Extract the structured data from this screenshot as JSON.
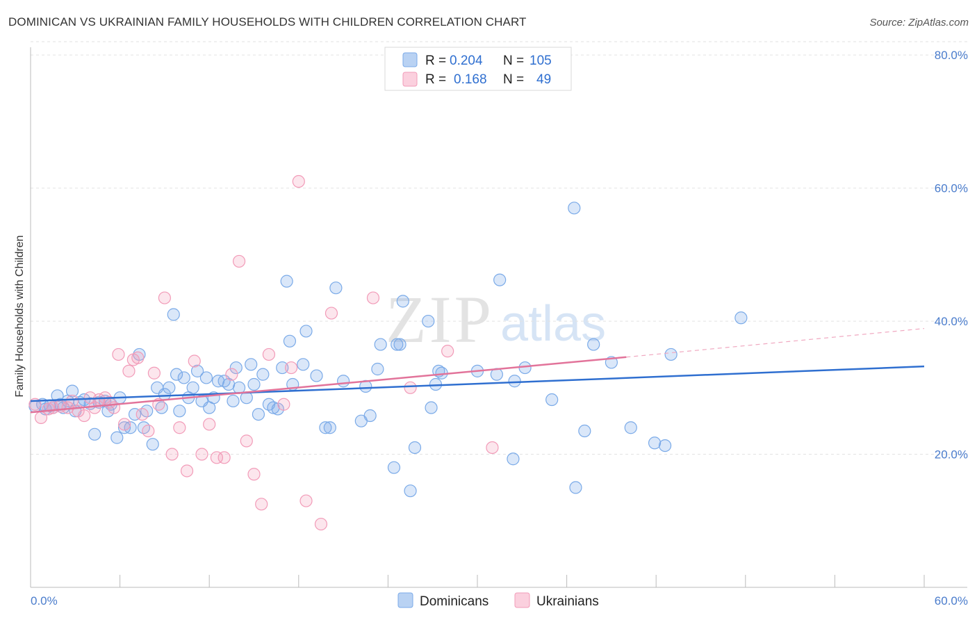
{
  "title": "DOMINICAN VS UKRAINIAN FAMILY HOUSEHOLDS WITH CHILDREN CORRELATION CHART",
  "source": "Source: ZipAtlas.com",
  "watermark": {
    "zip": "ZIP",
    "atlas": "atlas"
  },
  "legend_top": [
    {
      "r_label": "R =",
      "r_value": "0.204",
      "n_label": "N =",
      "n_value": "105",
      "color": "#7aaae8"
    },
    {
      "r_label": "R =",
      "r_value": "0.168",
      "n_label": "N =",
      "n_value": "49",
      "color": "#f29bb8"
    }
  ],
  "legend_bottom": [
    {
      "label": "Dominicans",
      "color": "#7aaae8"
    },
    {
      "label": "Ukrainians",
      "color": "#f29bb8"
    }
  ],
  "chart_data": {
    "type": "scatter",
    "title": "DOMINICAN VS UKRAINIAN FAMILY HOUSEHOLDS WITH CHILDREN CORRELATION CHART",
    "xlabel": "",
    "ylabel": "Family Households with Children",
    "xlim": [
      0,
      60
    ],
    "ylim": [
      0,
      82
    ],
    "x_tick_labels": [
      "0.0%",
      "60.0%"
    ],
    "y_ticks": [
      20,
      40,
      60,
      80
    ],
    "y_tick_labels": [
      "20.0%",
      "40.0%",
      "60.0%",
      "80.0%"
    ],
    "grid": true,
    "series": [
      {
        "name": "Dominicans",
        "color": "#7aaae8",
        "trend": {
          "x0": 0,
          "y0": 28.0,
          "x1": 60,
          "y1": 33.2
        },
        "points": [
          [
            0.3,
            27.2
          ],
          [
            0.8,
            27.5
          ],
          [
            1.0,
            26.8
          ],
          [
            1.3,
            27.3
          ],
          [
            1.5,
            27.0
          ],
          [
            1.8,
            28.8
          ],
          [
            2.0,
            27.5
          ],
          [
            2.2,
            27.0
          ],
          [
            2.5,
            28.0
          ],
          [
            2.8,
            29.5
          ],
          [
            3.0,
            26.5
          ],
          [
            3.3,
            27.8
          ],
          [
            3.6,
            28.2
          ],
          [
            4.0,
            27.6
          ],
          [
            4.3,
            23.0
          ],
          [
            4.6,
            27.8
          ],
          [
            5.0,
            28.0
          ],
          [
            5.2,
            26.5
          ],
          [
            5.4,
            27.5
          ],
          [
            5.8,
            22.5
          ],
          [
            6.0,
            28.5
          ],
          [
            6.3,
            24.0
          ],
          [
            6.7,
            24.0
          ],
          [
            7.0,
            26.0
          ],
          [
            7.3,
            35.0
          ],
          [
            7.6,
            24.0
          ],
          [
            7.8,
            26.5
          ],
          [
            8.2,
            21.5
          ],
          [
            8.5,
            30.0
          ],
          [
            8.8,
            27.0
          ],
          [
            9.0,
            29.0
          ],
          [
            9.3,
            30.0
          ],
          [
            9.6,
            41.0
          ],
          [
            9.8,
            32.0
          ],
          [
            10.0,
            26.5
          ],
          [
            10.3,
            31.5
          ],
          [
            10.6,
            28.5
          ],
          [
            10.9,
            30.0
          ],
          [
            11.2,
            32.5
          ],
          [
            11.5,
            28.0
          ],
          [
            11.8,
            31.5
          ],
          [
            12.0,
            27.0
          ],
          [
            12.3,
            28.5
          ],
          [
            12.6,
            31.0
          ],
          [
            13.0,
            31.0
          ],
          [
            13.3,
            30.5
          ],
          [
            13.6,
            28.0
          ],
          [
            13.8,
            33.0
          ],
          [
            14.0,
            30.0
          ],
          [
            14.5,
            28.5
          ],
          [
            14.8,
            33.5
          ],
          [
            15.0,
            30.5
          ],
          [
            15.3,
            26.0
          ],
          [
            15.6,
            32.0
          ],
          [
            16.0,
            27.5
          ],
          [
            16.3,
            27.0
          ],
          [
            16.6,
            26.8
          ],
          [
            16.9,
            33.0
          ],
          [
            17.2,
            46.0
          ],
          [
            17.4,
            37.0
          ],
          [
            17.6,
            30.5
          ],
          [
            18.3,
            33.5
          ],
          [
            18.5,
            38.5
          ],
          [
            19.2,
            31.8
          ],
          [
            19.8,
            24.0
          ],
          [
            20.1,
            24.0
          ],
          [
            20.5,
            45.0
          ],
          [
            21.0,
            31.0
          ],
          [
            22.2,
            25.0
          ],
          [
            22.5,
            30.2
          ],
          [
            22.8,
            25.8
          ],
          [
            23.3,
            32.8
          ],
          [
            23.5,
            36.5
          ],
          [
            24.4,
            18.0
          ],
          [
            24.6,
            36.5
          ],
          [
            24.8,
            36.5
          ],
          [
            25.0,
            43.0
          ],
          [
            25.5,
            14.5
          ],
          [
            25.8,
            21.0
          ],
          [
            26.7,
            40.0
          ],
          [
            26.9,
            27.0
          ],
          [
            27.2,
            30.5
          ],
          [
            27.4,
            32.5
          ],
          [
            27.6,
            32.2
          ],
          [
            30.0,
            32.5
          ],
          [
            31.3,
            32.0
          ],
          [
            31.5,
            46.2
          ],
          [
            32.4,
            19.3
          ],
          [
            32.5,
            31.0
          ],
          [
            33.2,
            33.0
          ],
          [
            35.0,
            28.2
          ],
          [
            36.5,
            57.0
          ],
          [
            36.6,
            15.0
          ],
          [
            37.2,
            23.5
          ],
          [
            37.8,
            36.5
          ],
          [
            39.0,
            33.8
          ],
          [
            40.3,
            24.0
          ],
          [
            41.9,
            21.7
          ],
          [
            42.6,
            21.3
          ],
          [
            43.0,
            35.0
          ],
          [
            47.7,
            40.5
          ]
        ]
      },
      {
        "name": "Ukrainians",
        "color": "#f29bb8",
        "trend_solid": {
          "x0": 0,
          "y0": 26.3,
          "x1": 40,
          "y1": 34.6
        },
        "trend_dashed": {
          "x0": 40,
          "y0": 34.6,
          "x1": 60,
          "y1": 38.9
        },
        "points": [
          [
            0.3,
            27.5
          ],
          [
            0.7,
            25.5
          ],
          [
            1.2,
            26.8
          ],
          [
            1.5,
            27.0
          ],
          [
            2.0,
            27.2
          ],
          [
            2.5,
            27.0
          ],
          [
            2.8,
            28.0
          ],
          [
            3.2,
            26.5
          ],
          [
            3.6,
            25.8
          ],
          [
            4.0,
            28.5
          ],
          [
            4.3,
            27.0
          ],
          [
            4.6,
            28.2
          ],
          [
            5.0,
            28.5
          ],
          [
            5.3,
            27.8
          ],
          [
            5.6,
            27.0
          ],
          [
            5.9,
            35.0
          ],
          [
            6.3,
            24.5
          ],
          [
            6.6,
            32.5
          ],
          [
            6.9,
            34.2
          ],
          [
            7.2,
            34.5
          ],
          [
            7.5,
            26.0
          ],
          [
            7.9,
            23.5
          ],
          [
            8.3,
            32.2
          ],
          [
            8.6,
            27.5
          ],
          [
            9.0,
            43.5
          ],
          [
            9.5,
            20.0
          ],
          [
            10.0,
            24.0
          ],
          [
            10.5,
            17.5
          ],
          [
            11.0,
            34.0
          ],
          [
            11.5,
            20.0
          ],
          [
            12.0,
            24.5
          ],
          [
            12.5,
            19.5
          ],
          [
            13.0,
            19.5
          ],
          [
            13.5,
            32.0
          ],
          [
            14.0,
            49.0
          ],
          [
            14.5,
            22.0
          ],
          [
            15.0,
            17.0
          ],
          [
            15.5,
            12.5
          ],
          [
            16.0,
            35.0
          ],
          [
            17.0,
            27.5
          ],
          [
            17.5,
            33.0
          ],
          [
            18.0,
            61.0
          ],
          [
            18.5,
            13.0
          ],
          [
            19.5,
            9.5
          ],
          [
            20.2,
            41.2
          ],
          [
            23.0,
            43.5
          ],
          [
            25.5,
            30.0
          ],
          [
            28.0,
            35.5
          ],
          [
            31.0,
            21.0
          ]
        ]
      }
    ]
  }
}
